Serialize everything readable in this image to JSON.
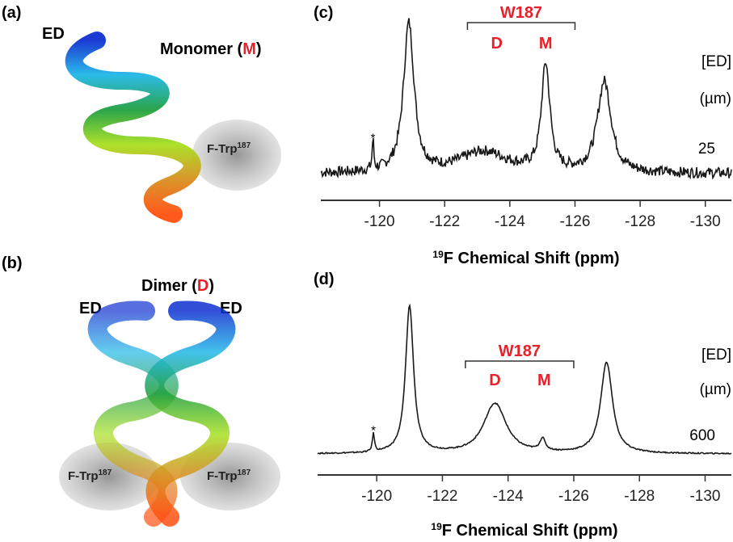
{
  "panels": {
    "a": {
      "tag": "(a)",
      "ed": "ED",
      "title": "Monomer (",
      "title_letter": "M",
      "title_end": ")",
      "site": "F-Trp",
      "site_sup": "187"
    },
    "b": {
      "tag": "(b)",
      "ed_left": "ED",
      "ed_right": "ED",
      "title": "Dimer (",
      "title_letter": "D",
      "title_end": ")",
      "site": "F-Trp",
      "site_sup": "187"
    }
  },
  "colors": {
    "label_red": "#e8202a",
    "trace": "#1a1a1a",
    "shadow": "#9a9a9a"
  },
  "chart_data": [
    {
      "type": "line",
      "panel": "(c)",
      "xlabel_sup": "19",
      "xlabel": "F Chemical Shift (ppm)",
      "xlim": [
        -118.2,
        -130.8
      ],
      "xticks": [
        -120,
        -122,
        -124,
        -126,
        -128,
        -130
      ],
      "tick_labels": [
        "-120",
        "-122",
        "-124",
        "-126",
        "-128",
        "-130"
      ],
      "bracket_label": "W187",
      "bracket_range": [
        -122.7,
        -126.0
      ],
      "peak_labels": [
        {
          "text": "D",
          "ppm": -123.6
        },
        {
          "text": "M",
          "ppm": -125.1
        }
      ],
      "star": {
        "text": "*",
        "ppm": -119.8
      },
      "concentration_header": "[ED]",
      "concentration_unit": "(µm)",
      "concentration": "25",
      "noise": 0.035,
      "peaks": [
        {
          "ppm": -119.8,
          "height": 0.2,
          "width": 0.03
        },
        {
          "ppm": -120.9,
          "height": 0.98,
          "width": 0.2
        },
        {
          "ppm": -123.2,
          "height": 0.14,
          "width": 0.9
        },
        {
          "ppm": -125.1,
          "height": 0.7,
          "width": 0.16
        },
        {
          "ppm": -126.9,
          "height": 0.6,
          "width": 0.26
        }
      ]
    },
    {
      "type": "line",
      "panel": "(d)",
      "xlabel_sup": "19",
      "xlabel": "F Chemical Shift (ppm)",
      "xlim": [
        -118.2,
        -130.8
      ],
      "xticks": [
        -120,
        -122,
        -124,
        -126,
        -128,
        -130
      ],
      "tick_labels": [
        "-120",
        "-122",
        "-124",
        "-126",
        "-128",
        "-130"
      ],
      "bracket_label": "W187",
      "bracket_range": [
        -122.7,
        -126.0
      ],
      "peak_labels": [
        {
          "text": "D",
          "ppm": -123.6
        },
        {
          "text": "M",
          "ppm": -125.1
        }
      ],
      "star": {
        "text": "*",
        "ppm": -119.9
      },
      "concentration_header": "[ED]",
      "concentration_unit": "(µm)",
      "concentration": "600",
      "noise": 0.004,
      "peaks": [
        {
          "ppm": -119.9,
          "height": 0.12,
          "width": 0.04
        },
        {
          "ppm": -121.0,
          "height": 0.97,
          "width": 0.15
        },
        {
          "ppm": -123.6,
          "height": 0.33,
          "width": 0.42
        },
        {
          "ppm": -125.05,
          "height": 0.08,
          "width": 0.1
        },
        {
          "ppm": -127.0,
          "height": 0.6,
          "width": 0.22
        }
      ]
    }
  ]
}
